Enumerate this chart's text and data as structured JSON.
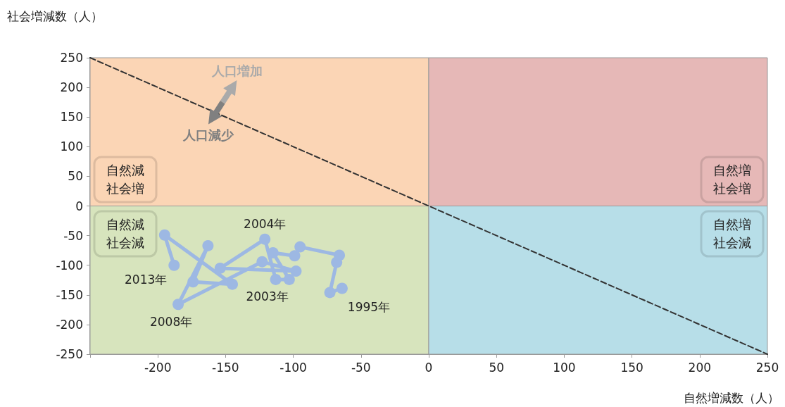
{
  "chart_data": {
    "type": "line",
    "xlabel": "自然増減数（人）",
    "ylabel": "社会増減数（人）",
    "xlim": [
      -250,
      250
    ],
    "xticks": [
      {
        "value": -250,
        "label": null
      },
      -200,
      -150,
      -100,
      -50,
      0,
      50,
      100,
      150,
      200,
      250
    ],
    "ylim": [
      -250,
      250
    ],
    "yticks": [
      -250,
      -200,
      -150,
      -100,
      -50,
      0,
      50,
      100,
      150,
      200,
      250
    ],
    "series": [
      {
        "color": "#9db8e3",
        "marker": "circle",
        "line_style": "solid",
        "x": [
          -64,
          -73,
          -68,
          -66,
          -95,
          -99,
          -115,
          -103,
          -113,
          -121,
          -154,
          -98,
          -123,
          -185,
          -163,
          -174,
          -145,
          -195,
          -188
        ],
        "values": [
          -139,
          -146,
          -95,
          -83,
          -69,
          -84,
          -79,
          -124,
          -124,
          -56,
          -105,
          -110,
          -94,
          -166,
          -67,
          -128,
          -132,
          -49,
          -100
        ]
      },
      {
        "color": "#333333",
        "marker": "none",
        "line_style": "dashed",
        "x": [
          -250,
          250
        ],
        "values": [
          250,
          -250
        ]
      }
    ],
    "bands": [
      {
        "axis": "x",
        "from": -250,
        "to": 0,
        "color": "#fbd5b5",
        "label": "自然減社会増"
      },
      {
        "axis": "x",
        "from": 0,
        "to": 250,
        "color": "#e6b8b7",
        "label": "自然増社会増"
      },
      {
        "axis": "x",
        "from": -250,
        "to": 0,
        "color": "#d7e4bd",
        "label": "自然減社会減"
      },
      {
        "axis": "x",
        "from": 0,
        "to": 250,
        "color": "#b7dee8",
        "label": "自然増社会減"
      }
    ],
    "annotations": [
      "人口増加",
      "人口減少",
      {
        "text": "1995年",
        "x": -64,
        "y": -139
      },
      {
        "text": "2003年",
        "x": -113,
        "y": -124
      },
      {
        "text": "2004年",
        "x": -121,
        "y": -56
      },
      {
        "text": "2008年",
        "x": -185,
        "y": -166
      },
      {
        "text": "2013年",
        "x": -188,
        "y": -100
      }
    ]
  }
}
